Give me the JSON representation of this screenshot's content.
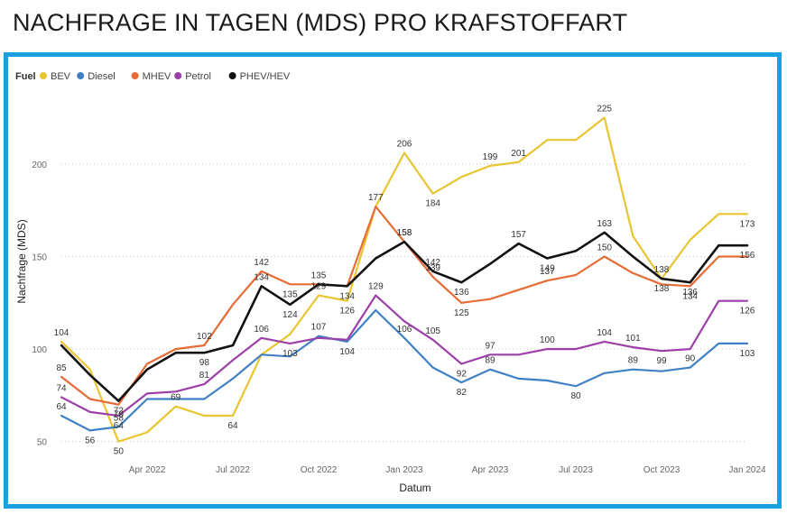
{
  "page_title": "NACHFRAGE IN TAGEN (MDS) PRO KRAFSTOFFART",
  "chart_data": {
    "type": "line",
    "title": "NACHFRAGE IN TAGEN (MDS) PRO KRAFSTOFFART",
    "xlabel": "Datum",
    "ylabel": "Nachfrage (MDS)",
    "legend_title": "Fuel",
    "legend_position": "top-left",
    "grid": true,
    "ylim": [
      45,
      235
    ],
    "yticks": [
      50,
      100,
      150,
      200
    ],
    "x_tick_labels": [
      "Apr 2022",
      "Jul 2022",
      "Oct 2022",
      "Jan 2023",
      "Apr 2023",
      "Jul 2023",
      "Oct 2023",
      "Jan 2024"
    ],
    "x_tick_positions": [
      3,
      6,
      9,
      12,
      15,
      18,
      21,
      24
    ],
    "x": [
      "Jan 2022",
      "Feb 2022",
      "Mar 2022",
      "Apr 2022",
      "May 2022",
      "Jun 2022",
      "Jul 2022",
      "Aug 2022",
      "Sep 2022",
      "Oct 2022",
      "Nov 2022",
      "Dec 2022",
      "Jan 2023",
      "Feb 2023",
      "Mar 2023",
      "Apr 2023",
      "May 2023",
      "Jun 2023",
      "Jul 2023",
      "Aug 2023",
      "Sep 2023",
      "Oct 2023",
      "Nov 2023",
      "Dec 2023",
      "Jan 2024"
    ],
    "series": [
      {
        "name": "BEV",
        "color": "#e8c531",
        "values": [
          104,
          89,
          50,
          55,
          69,
          64,
          64,
          97,
          108,
          129,
          126,
          177,
          206,
          184,
          193,
          199,
          201,
          213,
          213,
          225,
          161,
          138,
          159,
          173,
          173
        ],
        "label_indices": [
          0,
          2,
          4,
          6,
          9,
          10,
          12,
          13,
          15,
          16,
          19,
          21,
          24
        ]
      },
      {
        "name": "Diesel",
        "color": "#3f81c4",
        "values": [
          64,
          56,
          58,
          73,
          73,
          73,
          84,
          97,
          96,
          107,
          104,
          121,
          106,
          90,
          82,
          89,
          84,
          83,
          80,
          87,
          89,
          88,
          90,
          103,
          103
        ],
        "label_indices": [
          0,
          1,
          2,
          9,
          10,
          12,
          14,
          15,
          18,
          20,
          22,
          24
        ]
      },
      {
        "name": "MHEV",
        "color": "#e66b34",
        "values": [
          85,
          73,
          70,
          92,
          100,
          102,
          124,
          142,
          135,
          135,
          134,
          177,
          158,
          139,
          125,
          127,
          132,
          137,
          140,
          150,
          141,
          135,
          134,
          150,
          150
        ],
        "label_indices": [
          0,
          2,
          5,
          7,
          8,
          11,
          12,
          13,
          14,
          17,
          19,
          22
        ]
      },
      {
        "name": "Petrol",
        "color": "#9c3fa8",
        "values": [
          74,
          66,
          64,
          76,
          77,
          81,
          94,
          106,
          103,
          106,
          105,
          129,
          115,
          105,
          92,
          97,
          97,
          100,
          100,
          104,
          101,
          99,
          100,
          126,
          126
        ],
        "label_indices": [
          0,
          2,
          5,
          7,
          8,
          11,
          13,
          14,
          15,
          17,
          19,
          20,
          21,
          24
        ]
      },
      {
        "name": "PHEV/HEV",
        "color": "#111111",
        "values": [
          102,
          86,
          72,
          89,
          98,
          98,
          102,
          134,
          124,
          135,
          134,
          149,
          158,
          142,
          136,
          146,
          157,
          149,
          153,
          163,
          150,
          138,
          136,
          156,
          156
        ],
        "label_indices": [
          2,
          5,
          7,
          8,
          9,
          10,
          12,
          13,
          14,
          16,
          17,
          19,
          21,
          22,
          24
        ]
      }
    ]
  }
}
